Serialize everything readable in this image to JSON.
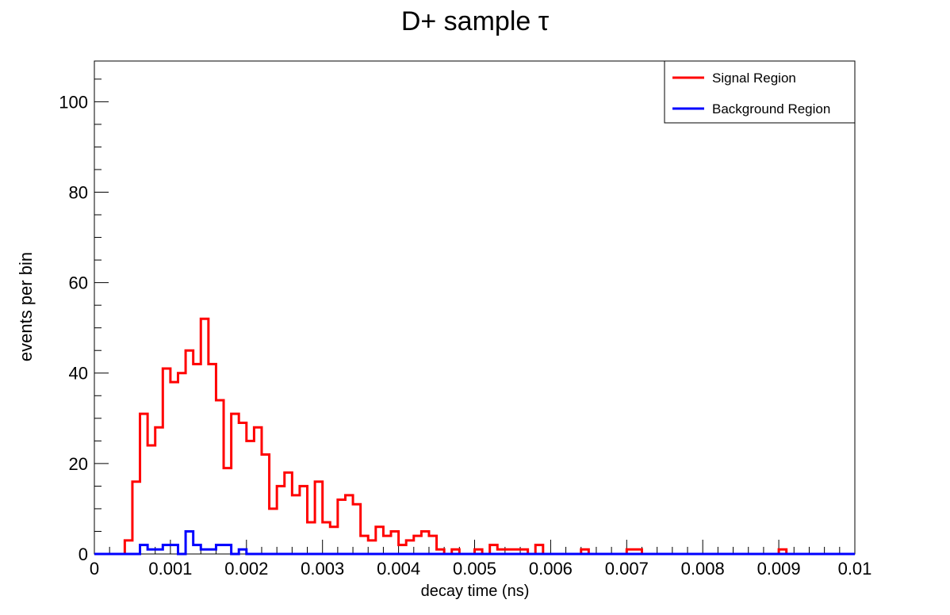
{
  "chart_data": {
    "type": "histogram",
    "title": "D+ sample τ",
    "xlabel": "decay time (ns)",
    "ylabel": "events per bin",
    "xlim": [
      0,
      0.01
    ],
    "ylim": [
      0,
      109
    ],
    "bins": 100,
    "bin_width": 0.0001,
    "x_ticks": [
      "0",
      "0.001",
      "0.002",
      "0.003",
      "0.004",
      "0.005",
      "0.006",
      "0.007",
      "0.008",
      "0.009",
      "0.01"
    ],
    "y_ticks": [
      "0",
      "20",
      "40",
      "60",
      "80",
      "100"
    ],
    "legend_position": "top-right",
    "grid": false,
    "series": [
      {
        "name": "Signal Region",
        "color": "#ff0000",
        "values": [
          0,
          0,
          0,
          0,
          3,
          16,
          31,
          24,
          28,
          41,
          38,
          40,
          45,
          42,
          52,
          42,
          34,
          19,
          31,
          29,
          25,
          28,
          22,
          10,
          15,
          18,
          13,
          15,
          7,
          16,
          7,
          6,
          12,
          13,
          11,
          4,
          3,
          6,
          4,
          5,
          2,
          3,
          4,
          5,
          4,
          1,
          0,
          1,
          0,
          0,
          1,
          0,
          2,
          1,
          1,
          1,
          1,
          0,
          2,
          0,
          0,
          0,
          0,
          0,
          1,
          0,
          0,
          0,
          0,
          0,
          1,
          1,
          0,
          0,
          0,
          0,
          0,
          0,
          0,
          0,
          0,
          0,
          0,
          0,
          0,
          0,
          0,
          0,
          0,
          0,
          1,
          0,
          0,
          0,
          0,
          0,
          0,
          0,
          0,
          0
        ]
      },
      {
        "name": "Background Region",
        "color": "#0000ff",
        "values": [
          0,
          0,
          0,
          0,
          0,
          0,
          2,
          1,
          1,
          2,
          2,
          0,
          5,
          2,
          1,
          1,
          2,
          2,
          0,
          1,
          0,
          0,
          0,
          0,
          0,
          0,
          0,
          0,
          0,
          0,
          0,
          0,
          0,
          0,
          0,
          0,
          0,
          0,
          0,
          0,
          0,
          0,
          0,
          0,
          0,
          0,
          0,
          0,
          0,
          0,
          0,
          0,
          0,
          0,
          0,
          0,
          0,
          0,
          0,
          0,
          0,
          0,
          0,
          0,
          0,
          0,
          0,
          0,
          0,
          0,
          0,
          0,
          0,
          0,
          0,
          0,
          0,
          0,
          0,
          0,
          0,
          0,
          0,
          0,
          0,
          0,
          0,
          0,
          0,
          0,
          0,
          0,
          0,
          0,
          0,
          0,
          0,
          0,
          0,
          0
        ]
      }
    ]
  }
}
